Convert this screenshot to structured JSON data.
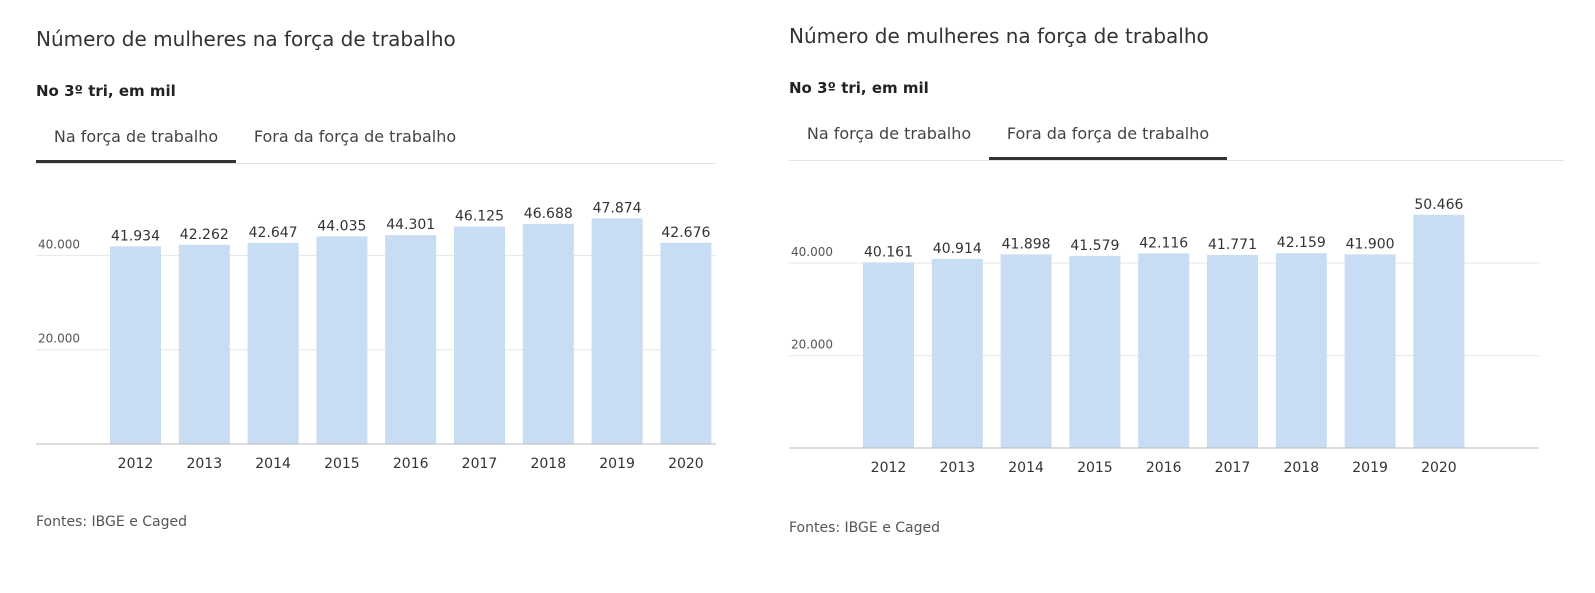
{
  "panels": [
    {
      "title": "Número de mulheres na força de trabalho",
      "subtitle": "No 3º tri, em mil",
      "tabs": [
        {
          "label": "Na força de trabalho",
          "active": true
        },
        {
          "label": "Fora da força de trabalho",
          "active": false
        }
      ],
      "source": "Fontes: IBGE e Caged"
    },
    {
      "title": "Número de mulheres na força de trabalho",
      "subtitle": "No 3º tri, em mil",
      "tabs": [
        {
          "label": "Na força de trabalho",
          "active": false
        },
        {
          "label": "Fora da força de trabalho",
          "active": true
        }
      ],
      "source": "Fontes: IBGE e Caged"
    }
  ],
  "colors": {
    "bar": "#c8dcf3",
    "grid": "#e6e6e6",
    "axis": "#bbbbbb",
    "text": "#333333",
    "tab_active_underline": "#333333"
  },
  "chart_data": [
    {
      "type": "bar",
      "title": "Número de mulheres na força de trabalho",
      "subtitle": "No 3º tri, em mil",
      "categories": [
        "2012",
        "2013",
        "2014",
        "2015",
        "2016",
        "2017",
        "2018",
        "2019",
        "2020"
      ],
      "values": [
        41934,
        42262,
        42647,
        44035,
        44301,
        46125,
        46688,
        47874,
        42676
      ],
      "value_labels": [
        "41.934",
        "42.262",
        "42.647",
        "44.035",
        "44.301",
        "46.125",
        "46.688",
        "47.874",
        "42.676"
      ],
      "yticks": [
        20000,
        40000
      ],
      "ytick_labels": [
        "20.000",
        "40.000"
      ],
      "ylim": [
        0,
        56000
      ],
      "grid": true,
      "xlabel": "",
      "ylabel": ""
    },
    {
      "type": "bar",
      "title": "Número de mulheres na força de trabalho",
      "subtitle": "No 3º tri, em mil",
      "categories": [
        "2012",
        "2013",
        "2014",
        "2015",
        "2016",
        "2017",
        "2018",
        "2019",
        "2020"
      ],
      "values": [
        40161,
        40914,
        41898,
        41579,
        42116,
        41771,
        42159,
        41900,
        50466
      ],
      "value_labels": [
        "40.161",
        "40.914",
        "41.898",
        "41.579",
        "42.116",
        "41.771",
        "42.159",
        "41.900",
        "50.466"
      ],
      "yticks": [
        20000,
        40000
      ],
      "ytick_labels": [
        "20.000",
        "40.000"
      ],
      "ylim": [
        0,
        58000
      ],
      "grid": true,
      "xlabel": "",
      "ylabel": ""
    }
  ]
}
